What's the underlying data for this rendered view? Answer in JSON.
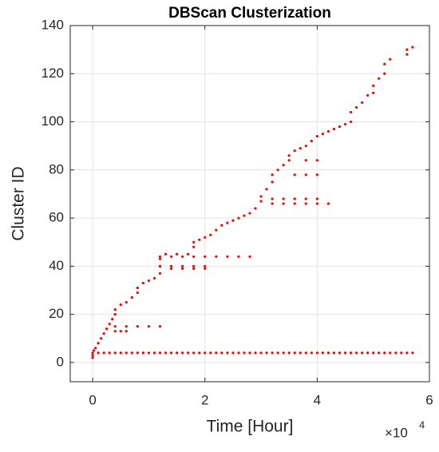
{
  "chart_data": {
    "type": "scatter",
    "title": "DBScan Clusterization",
    "x_label": "Time [Hour]",
    "y_label": "Cluster ID",
    "x_multiplier": {
      "base": "×10",
      "exponent": "4"
    },
    "color": "#ff0000",
    "grid": true,
    "xlim": [
      -4000,
      60000
    ],
    "ylim": [
      -8,
      140
    ],
    "xticks": [
      {
        "value": 0,
        "label": "0"
      },
      {
        "value": 20000,
        "label": "2"
      },
      {
        "value": 40000,
        "label": "4"
      },
      {
        "value": 60000,
        "label": "6"
      }
    ],
    "yticks": [
      0,
      20,
      40,
      60,
      80,
      100,
      120,
      140
    ],
    "x": [
      0,
      0,
      200,
      500,
      1000,
      1500,
      2000,
      2500,
      3000,
      3500,
      4000,
      4000,
      5000,
      6000,
      7000,
      8000,
      8000,
      9000,
      10000,
      11000,
      12000,
      12000,
      12000,
      13000,
      15000,
      17000,
      18000,
      18000,
      19000,
      20000,
      21000,
      22000,
      23000,
      24000,
      25000,
      26000,
      27000,
      28000,
      29000,
      30000,
      30000,
      31000,
      32000,
      32000,
      33000,
      34000,
      35000,
      35000,
      36000,
      37000,
      38000,
      39000,
      40000,
      41000,
      42000,
      43000,
      44000,
      45000,
      46000,
      46000,
      47000,
      48000,
      49000,
      50000,
      51000,
      52000,
      52000,
      53000,
      56000,
      56000,
      57000,
      4000,
      6000,
      8000,
      10000,
      12000,
      4000,
      5000,
      6000,
      12000,
      14000,
      16000,
      18000,
      20000,
      14000,
      16000,
      18000,
      20000,
      12000,
      14000,
      16000,
      18000,
      20000,
      22000,
      24000,
      26000,
      28000,
      32000,
      34000,
      36000,
      38000,
      40000,
      42000,
      32000,
      34000,
      36000,
      38000,
      40000,
      36000,
      38000,
      40000,
      38000,
      40000,
      50000,
      0,
      1000,
      2000,
      3000,
      4000,
      5000,
      6000,
      7000,
      8000,
      9000,
      10000,
      11000,
      12000,
      13000,
      14000,
      15000,
      16000,
      17000,
      18000,
      19000,
      20000,
      21000,
      22000,
      23000,
      24000,
      25000,
      26000,
      27000,
      28000,
      29000,
      30000,
      31000,
      32000,
      33000,
      34000,
      35000,
      36000,
      37000,
      38000,
      39000,
      40000,
      41000,
      42000,
      43000,
      44000,
      45000,
      46000,
      47000,
      48000,
      49000,
      50000,
      51000,
      52000,
      53000,
      54000,
      55000,
      56000,
      57000
    ],
    "values": [
      2,
      3,
      5,
      6,
      8,
      10,
      12,
      14,
      16,
      18,
      20,
      22,
      24,
      25,
      27,
      29,
      31,
      33,
      34,
      35,
      37,
      40,
      43,
      45,
      45,
      45,
      48,
      50,
      51,
      52,
      53,
      55,
      57,
      58,
      59,
      60,
      61,
      62,
      64,
      67,
      69,
      72,
      75,
      78,
      80,
      82,
      84,
      86,
      88,
      89,
      90,
      92,
      94,
      95,
      96,
      97,
      98,
      99,
      100,
      104,
      106,
      108,
      111,
      115,
      118,
      120,
      124,
      126,
      128,
      130,
      131,
      15,
      15,
      15,
      15,
      15,
      13,
      13,
      13,
      40,
      40,
      40,
      40,
      40,
      39,
      39,
      39,
      39,
      44,
      44,
      44,
      44,
      44,
      44,
      44,
      44,
      44,
      66,
      66,
      66,
      66,
      66,
      66,
      68,
      68,
      68,
      68,
      68,
      78,
      78,
      78,
      84,
      84,
      112,
      4,
      4,
      4,
      4,
      4,
      4,
      4,
      4,
      4,
      4,
      4,
      4,
      4,
      4,
      4,
      4,
      4,
      4,
      4,
      4,
      4,
      4,
      4,
      4,
      4,
      4,
      4,
      4,
      4,
      4,
      4,
      4,
      4,
      4,
      4,
      4,
      4,
      4,
      4,
      4,
      4,
      4,
      4,
      4,
      4,
      4,
      4,
      4,
      4,
      4,
      4,
      4,
      4,
      4,
      4,
      4,
      4,
      4
    ]
  }
}
